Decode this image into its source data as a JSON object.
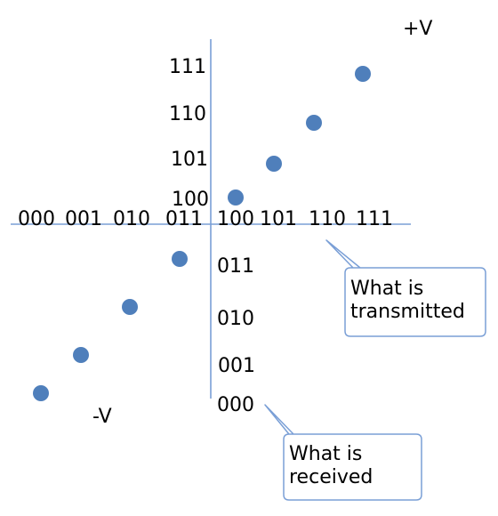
{
  "diagram": {
    "x_axis_labels": [
      "000",
      "001",
      "010",
      "011",
      "100",
      "101",
      "110",
      "111"
    ],
    "y_axis_upper_labels": [
      "111",
      "110",
      "101",
      "100"
    ],
    "y_axis_lower_labels": [
      "011",
      "010",
      "001",
      "000"
    ],
    "plus_v": "+V",
    "minus_v": "-V",
    "callout_transmitted": "What is transmitted",
    "callout_received": "What is received",
    "colors": {
      "axis": "#7a9fd6",
      "dot": "#4f7fbb",
      "callout_border": "#7a9fd6"
    }
  }
}
